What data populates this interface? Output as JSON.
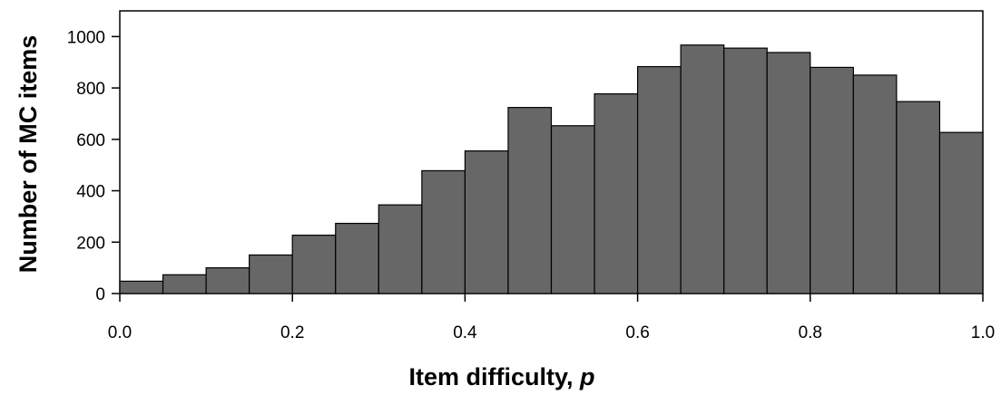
{
  "chart_data": {
    "type": "bar",
    "title": "",
    "xlabel": "Item difficulty,",
    "xlabel_var": "p",
    "ylabel": "Number of MC items",
    "bin_edges": [
      0.0,
      0.05,
      0.1,
      0.15,
      0.2,
      0.25,
      0.3,
      0.35,
      0.4,
      0.45,
      0.5,
      0.55,
      0.6,
      0.65,
      0.7,
      0.75,
      0.8,
      0.85,
      0.9,
      0.95,
      1.0
    ],
    "values": [
      48,
      73,
      100,
      150,
      227,
      273,
      345,
      478,
      555,
      724,
      653,
      777,
      883,
      967,
      955,
      938,
      880,
      850,
      747,
      627
    ],
    "xlim": [
      0.0,
      1.0
    ],
    "ylim": [
      0,
      1100
    ],
    "xticks": [
      "0.0",
      "0.2",
      "0.4",
      "0.6",
      "0.8",
      "1.0"
    ],
    "yticks": [
      "0",
      "200",
      "400",
      "600",
      "800",
      "1000"
    ],
    "bar_color": "#676767",
    "grid": false
  }
}
